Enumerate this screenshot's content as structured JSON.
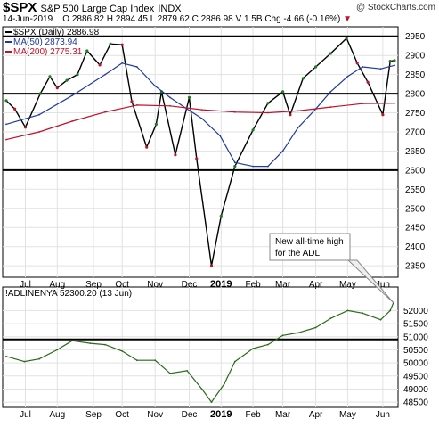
{
  "header": {
    "symbol": "$SPX",
    "name": "S&P 500 Large Cap Index",
    "exchange": "INDX",
    "watermark": "@ StockCharts.com",
    "date": "14-Jun-2019",
    "ohlc": "O 2886.82 H 2894.45 L 2879.62 C 2886.98 V 1.5B",
    "change": "Chg -4.66 (-0.16%)"
  },
  "colors": {
    "price": "#000000",
    "ma50": "#1f3a9e",
    "ma200": "#c0122a",
    "up": "#1e7a1e",
    "down": "#c0122a",
    "adl": "#2a6a1a",
    "grid": "#e2e2e2",
    "annotation_box": "#888888"
  },
  "chart_data": [
    {
      "type": "line",
      "panel": "price",
      "legend": [
        "$SPX (Daily) 2886.98",
        "MA(50) 2873.94",
        "MA(200) 2775.31"
      ],
      "ylim": [
        2320,
        2975
      ],
      "y_ticks": [
        2350,
        2400,
        2450,
        2500,
        2550,
        2600,
        2650,
        2700,
        2750,
        2800,
        2850,
        2900,
        2950
      ],
      "horizontal_lines": [
        2950,
        2800,
        2600
      ],
      "x_start": "2018-06-14",
      "x_end": "2019-06-14",
      "x_ticks": [
        {
          "date": "2018-07-02",
          "label": "Jul"
        },
        {
          "date": "2018-08-01",
          "label": "Aug"
        },
        {
          "date": "2018-09-04",
          "label": "Sep"
        },
        {
          "date": "2018-10-01",
          "label": "Oct"
        },
        {
          "date": "2018-11-01",
          "label": "Nov"
        },
        {
          "date": "2018-12-03",
          "label": "Dec"
        },
        {
          "date": "2019-01-02",
          "label": "2019"
        },
        {
          "date": "2019-02-01",
          "label": "Feb"
        },
        {
          "date": "2019-03-01",
          "label": "Mar"
        },
        {
          "date": "2019-04-01",
          "label": "Apr"
        },
        {
          "date": "2019-05-01",
          "label": "May"
        },
        {
          "date": "2019-06-03",
          "label": "Jun"
        }
      ],
      "series": [
        {
          "name": "$SPX (Daily) 2886.98",
          "dates": [
            "2018-06-14",
            "2018-06-22",
            "2018-07-02",
            "2018-07-16",
            "2018-07-25",
            "2018-08-01",
            "2018-08-10",
            "2018-08-20",
            "2018-08-29",
            "2018-09-10",
            "2018-09-20",
            "2018-10-01",
            "2018-10-10",
            "2018-10-24",
            "2018-11-02",
            "2018-11-07",
            "2018-11-20",
            "2018-12-03",
            "2018-12-10",
            "2018-12-24",
            "2019-01-02",
            "2019-01-15",
            "2019-02-01",
            "2019-02-15",
            "2019-03-01",
            "2019-03-08",
            "2019-03-20",
            "2019-04-01",
            "2019-04-15",
            "2019-04-30",
            "2019-05-10",
            "2019-05-20",
            "2019-06-03",
            "2019-06-10",
            "2019-06-14"
          ],
          "values": [
            2782,
            2760,
            2712,
            2800,
            2845,
            2815,
            2835,
            2850,
            2912,
            2875,
            2930,
            2928,
            2780,
            2660,
            2720,
            2805,
            2640,
            2790,
            2630,
            2350,
            2480,
            2610,
            2705,
            2775,
            2805,
            2745,
            2840,
            2870,
            2905,
            2945,
            2880,
            2830,
            2745,
            2885,
            2887
          ]
        },
        {
          "name": "MA(50) 2873.94",
          "dates": [
            "2018-06-14",
            "2018-07-15",
            "2018-08-15",
            "2018-09-15",
            "2018-10-01",
            "2018-10-15",
            "2018-11-01",
            "2018-11-15",
            "2018-12-01",
            "2018-12-15",
            "2019-01-01",
            "2019-01-15",
            "2019-02-01",
            "2019-02-15",
            "2019-03-01",
            "2019-03-15",
            "2019-04-01",
            "2019-04-15",
            "2019-05-01",
            "2019-05-15",
            "2019-06-01",
            "2019-06-14"
          ],
          "values": [
            2720,
            2745,
            2795,
            2850,
            2880,
            2870,
            2820,
            2790,
            2760,
            2735,
            2690,
            2620,
            2610,
            2610,
            2650,
            2710,
            2760,
            2805,
            2845,
            2870,
            2865,
            2874
          ]
        },
        {
          "name": "MA(200) 2775.31",
          "dates": [
            "2018-06-14",
            "2018-07-15",
            "2018-08-15",
            "2018-09-15",
            "2018-10-15",
            "2018-11-15",
            "2018-12-15",
            "2019-01-15",
            "2019-02-15",
            "2019-03-15",
            "2019-04-15",
            "2019-05-15",
            "2019-06-14"
          ],
          "values": [
            2680,
            2700,
            2728,
            2752,
            2770,
            2768,
            2758,
            2752,
            2750,
            2755,
            2765,
            2774,
            2775
          ]
        }
      ]
    },
    {
      "type": "line",
      "panel": "indicator",
      "legend": [
        "!ADLINENYA 52300.20 (13 Jun)"
      ],
      "ylim": [
        48300,
        52900
      ],
      "y_ticks": [
        48500,
        49000,
        49500,
        50000,
        50500,
        51000,
        51500,
        52000
      ],
      "horizontal_lines": [
        50900
      ],
      "annotation": "New all-time high for the ADL",
      "series": [
        {
          "name": "!ADLINENYA 52300.20 (13 Jun)",
          "dates": [
            "2018-06-14",
            "2018-07-01",
            "2018-07-15",
            "2018-08-01",
            "2018-08-15",
            "2018-09-01",
            "2018-09-15",
            "2018-10-01",
            "2018-10-15",
            "2018-11-01",
            "2018-11-15",
            "2018-12-01",
            "2018-12-15",
            "2018-12-24",
            "2019-01-05",
            "2019-01-15",
            "2019-02-01",
            "2019-02-15",
            "2019-03-01",
            "2019-03-15",
            "2019-04-01",
            "2019-04-15",
            "2019-05-01",
            "2019-05-15",
            "2019-06-01",
            "2019-06-10",
            "2019-06-13"
          ],
          "values": [
            50250,
            50050,
            50150,
            50500,
            50850,
            50750,
            50700,
            50450,
            50100,
            50100,
            49600,
            49700,
            49000,
            48500,
            49200,
            50050,
            50550,
            50700,
            51050,
            51150,
            51350,
            51700,
            52000,
            51900,
            51650,
            52000,
            52300
          ]
        }
      ]
    }
  ],
  "y_labels_price": [
    "2950",
    "2900",
    "2850",
    "2800",
    "2750",
    "2700",
    "2650",
    "2600",
    "2550",
    "2500",
    "2450",
    "2400",
    "2350"
  ],
  "y_labels_adl": [
    "52000",
    "51500",
    "51000",
    "50500",
    "50000",
    "49500",
    "49000",
    "48500"
  ]
}
